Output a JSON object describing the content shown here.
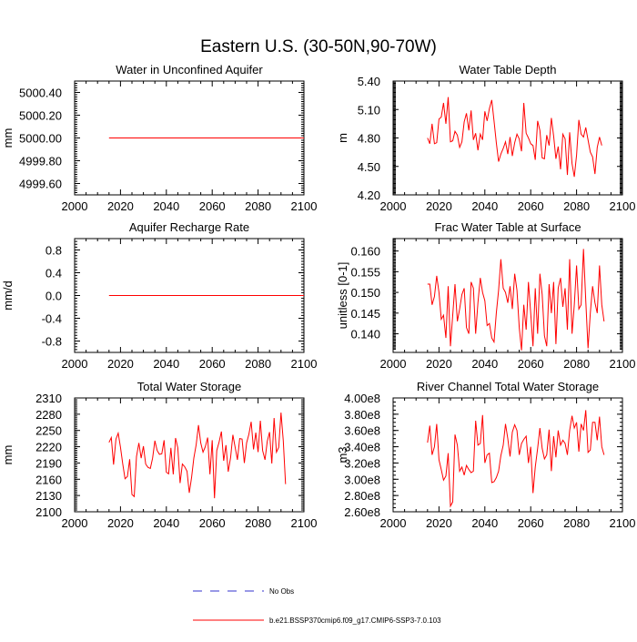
{
  "figure": {
    "title": "Eastern U.S. (30-50N,90-70W)",
    "colors": {
      "series": "#ff0000",
      "obs": "#3333cc",
      "axis": "#000000"
    },
    "legend": {
      "obs_label": "No Obs",
      "series_label": "b.e21.BSSP370cmip6.f09_g17.CMIP6-SSP3-7.0.103"
    }
  },
  "chart_data": [
    {
      "type": "line",
      "title": "Water in Unconfined Aquifer",
      "xlabel": "",
      "ylabel": "mm",
      "xlim": [
        2000,
        2100
      ],
      "ylim": [
        4999.5,
        5000.5
      ],
      "xticks": [
        2000,
        2020,
        2040,
        2060,
        2080,
        2100
      ],
      "yticks": [
        4999.6,
        4999.8,
        5000.0,
        5000.2,
        5000.4
      ],
      "ytick_labels": [
        "4999.60",
        "4999.80",
        "5000.00",
        "5000.20",
        "5000.40"
      ],
      "x": [
        2015,
        2100
      ],
      "series": [
        {
          "name": "b.e21.BSSP370cmip6.f09_g17.CMIP6-SSP3-7.0.103",
          "values": [
            5000.0,
            5000.0
          ]
        }
      ]
    },
    {
      "type": "line",
      "title": "Water Table Depth",
      "xlabel": "",
      "ylabel": "m",
      "xlim": [
        2000,
        2100
      ],
      "ylim": [
        4.2,
        5.4
      ],
      "xticks": [
        2000,
        2020,
        2040,
        2060,
        2080,
        2100
      ],
      "yticks": [
        4.2,
        4.5,
        4.8,
        5.1,
        5.4
      ],
      "ytick_labels": [
        "4.20",
        "4.50",
        "4.80",
        "5.10",
        "5.40"
      ],
      "x_start": 2015,
      "series": [
        {
          "name": "b.e21.BSSP370cmip6.f09_g17.CMIP6-SSP3-7.0.103",
          "values": [
            4.8,
            4.74,
            4.95,
            4.74,
            4.75,
            5.0,
            5.02,
            5.17,
            4.95,
            5.23,
            4.76,
            4.77,
            4.87,
            4.83,
            4.7,
            4.76,
            4.97,
            5.06,
            4.88,
            5.09,
            4.78,
            4.85,
            4.67,
            4.84,
            4.78,
            5.08,
            4.98,
            5.11,
            5.2,
            4.98,
            4.75,
            4.55,
            4.63,
            4.69,
            4.76,
            4.63,
            4.81,
            4.61,
            4.75,
            4.84,
            4.79,
            4.66,
            5.17,
            4.85,
            4.8,
            4.74,
            4.72,
            4.57,
            4.98,
            4.88,
            4.59,
            4.58,
            4.83,
            4.72,
            5.01,
            4.82,
            4.58,
            4.71,
            4.47,
            4.84,
            4.79,
            4.41,
            4.86,
            4.53,
            4.39,
            4.62,
            4.99,
            4.84,
            4.81,
            4.91,
            4.78,
            4.65,
            4.6,
            4.42,
            4.7,
            4.81,
            4.72
          ]
        }
      ]
    },
    {
      "type": "line",
      "title": "Aquifer Recharge Rate",
      "xlabel": "",
      "ylabel": "mm/d",
      "xlim": [
        2000,
        2100
      ],
      "ylim": [
        -1.0,
        1.0
      ],
      "xticks": [
        2000,
        2020,
        2040,
        2060,
        2080,
        2100
      ],
      "yticks": [
        -0.8,
        -0.4,
        0.0,
        0.4,
        0.8
      ],
      "ytick_labels": [
        "-0.8",
        "-0.4",
        "0.0",
        "0.4",
        "0.8"
      ],
      "x": [
        2015,
        2100
      ],
      "series": [
        {
          "name": "b.e21.BSSP370cmip6.f09_g17.CMIP6-SSP3-7.0.103",
          "values": [
            0.0,
            0.0
          ]
        }
      ]
    },
    {
      "type": "line",
      "title": "Frac Water Table at Surface",
      "xlabel": "",
      "ylabel": "unitless [0-1]",
      "xlim": [
        2000,
        2100
      ],
      "ylim": [
        0.1355,
        0.163
      ],
      "xticks": [
        2000,
        2020,
        2040,
        2060,
        2080,
        2100
      ],
      "yticks": [
        0.14,
        0.145,
        0.15,
        0.155,
        0.16
      ],
      "ytick_labels": [
        "0.140",
        "0.145",
        "0.150",
        "0.155",
        "0.160"
      ],
      "x_start": 2015,
      "series": [
        {
          "name": "b.e21.BSSP370cmip6.f09_g17.CMIP6-SSP3-7.0.103",
          "values": [
            0.152,
            0.152,
            0.147,
            0.149,
            0.154,
            0.15,
            0.1435,
            0.1445,
            0.139,
            0.1515,
            0.137,
            0.1445,
            0.152,
            0.143,
            0.146,
            0.1495,
            0.151,
            0.1415,
            0.14,
            0.1525,
            0.151,
            0.14,
            0.1475,
            0.1535,
            0.15,
            0.148,
            0.142,
            0.1425,
            0.139,
            0.138,
            0.145,
            0.1505,
            0.158,
            0.151,
            0.15,
            0.1475,
            0.1515,
            0.146,
            0.1545,
            0.1505,
            0.1415,
            0.136,
            0.147,
            0.141,
            0.1525,
            0.145,
            0.137,
            0.151,
            0.14,
            0.1545,
            0.1495,
            0.1395,
            0.137,
            0.152,
            0.145,
            0.1525,
            0.1375,
            0.151,
            0.1535,
            0.1465,
            0.151,
            0.141,
            0.158,
            0.14,
            0.147,
            0.1565,
            0.146,
            0.147,
            0.1605,
            0.148,
            0.1365,
            0.145,
            0.1515,
            0.1475,
            0.145,
            0.1565,
            0.147,
            0.143
          ]
        }
      ]
    },
    {
      "type": "line",
      "title": "Total Water Storage",
      "xlabel": "",
      "ylabel": "mm",
      "xlim": [
        2000,
        2100
      ],
      "ylim": [
        2100,
        2310
      ],
      "xticks": [
        2000,
        2020,
        2040,
        2060,
        2080,
        2100
      ],
      "yticks": [
        2100,
        2130,
        2160,
        2190,
        2220,
        2250,
        2280,
        2310
      ],
      "ytick_labels": [
        "2100",
        "2130",
        "2160",
        "2190",
        "2220",
        "2250",
        "2280",
        "2310"
      ],
      "x_start": 2015,
      "series": [
        {
          "name": "b.e21.BSSP370cmip6.f09_g17.CMIP6-SSP3-7.0.103",
          "values": [
            2228,
            2237,
            2187,
            2234,
            2245,
            2219,
            2188,
            2161,
            2165,
            2197,
            2132,
            2128,
            2202,
            2227,
            2199,
            2221,
            2188,
            2182,
            2180,
            2199,
            2231,
            2213,
            2206,
            2207,
            2232,
            2173,
            2170,
            2218,
            2169,
            2236,
            2218,
            2153,
            2188,
            2183,
            2175,
            2135,
            2163,
            2199,
            2224,
            2260,
            2227,
            2210,
            2220,
            2237,
            2169,
            2232,
            2125,
            2213,
            2229,
            2248,
            2194,
            2223,
            2174,
            2200,
            2242,
            2219,
            2196,
            2235,
            2234,
            2190,
            2227,
            2243,
            2266,
            2215,
            2246,
            2210,
            2268,
            2213,
            2196,
            2230,
            2247,
            2189,
            2273,
            2210,
            2219,
            2283,
            2231,
            2151
          ]
        }
      ]
    },
    {
      "type": "line",
      "title": "River Channel Total Water Storage",
      "xlabel": "",
      "ylabel": "m3",
      "xlim": [
        2000,
        2100
      ],
      "ylim": [
        260000000.0,
        400000000.0
      ],
      "xticks": [
        2000,
        2020,
        2040,
        2060,
        2080,
        2100
      ],
      "yticks": [
        260000000.0,
        280000000.0,
        300000000.0,
        320000000.0,
        340000000.0,
        360000000.0,
        380000000.0,
        400000000.0
      ],
      "ytick_labels": [
        "2.60e8",
        "2.80e8",
        "3.00e8",
        "3.20e8",
        "3.40e8",
        "3.60e8",
        "3.80e8",
        "4.00e8"
      ],
      "x_start": 2015,
      "series": [
        {
          "name": "b.e21.BSSP370cmip6.f09_g17.CMIP6-SSP3-7.0.103",
          "values": [
            345000000.0,
            366000000.0,
            330000000.0,
            340000000.0,
            368000000.0,
            324000000.0,
            312000000.0,
            299000000.0,
            304000000.0,
            332000000.0,
            267000000.0,
            272000000.0,
            355000000.0,
            342000000.0,
            310000000.0,
            315000000.0,
            305000000.0,
            317000000.0,
            312000000.0,
            308000000.0,
            310000000.0,
            372000000.0,
            342000000.0,
            344000000.0,
            379000000.0,
            320000000.0,
            330000000.0,
            332000000.0,
            296000000.0,
            297000000.0,
            302000000.0,
            310000000.0,
            329000000.0,
            342000000.0,
            368000000.0,
            350000000.0,
            328000000.0,
            358000000.0,
            367000000.0,
            360000000.0,
            330000000.0,
            344000000.0,
            349000000.0,
            353000000.0,
            320000000.0,
            340000000.0,
            283000000.0,
            315000000.0,
            338000000.0,
            363000000.0,
            338000000.0,
            325000000.0,
            330000000.0,
            361000000.0,
            310000000.0,
            353000000.0,
            327000000.0,
            360000000.0,
            342000000.0,
            348000000.0,
            344000000.0,
            330000000.0,
            360000000.0,
            378000000.0,
            363000000.0,
            370000000.0,
            334000000.0,
            368000000.0,
            360000000.0,
            385000000.0,
            333000000.0,
            336000000.0,
            370000000.0,
            370000000.0,
            348000000.0,
            377000000.0,
            340000000.0,
            330000000.0
          ]
        }
      ]
    }
  ]
}
